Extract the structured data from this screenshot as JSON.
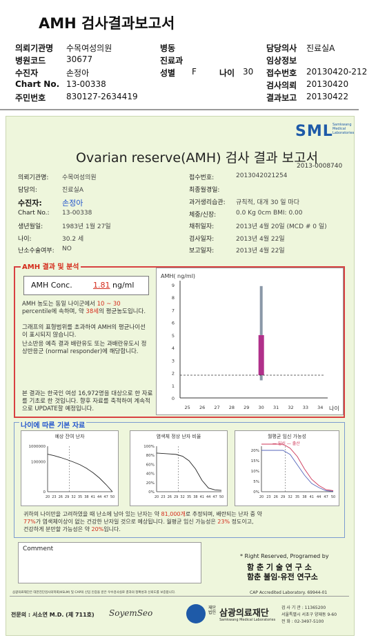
{
  "header": {
    "title": "AMH 검사결과보고서",
    "rows": [
      {
        "l1": "의뢰기관명",
        "v1": "수목여성의원",
        "l2": "병동",
        "v2": "",
        "l3": "담당의사",
        "v3": "진료실A"
      },
      {
        "l1": "병원코드",
        "v1": "30677",
        "l2": "진료과",
        "v2": "",
        "l3": "임상정보",
        "v3": ""
      },
      {
        "l1": "수진자",
        "v1": "손정아",
        "l2": "성별",
        "v2": "F",
        "l2b": "나이",
        "v2b": "30",
        "l3": "접수번호",
        "v3": "20130420-212"
      },
      {
        "l1": "Chart No.",
        "v1": "13-00338",
        "l2": "",
        "v2": "",
        "l3": "검사의뢰",
        "v3": "20130420"
      },
      {
        "l1": "주민번호",
        "v1": "830127-2634419",
        "l2": "",
        "v2": "",
        "l3": "결과보고",
        "v3": "20130422"
      }
    ]
  },
  "report": {
    "logo": "SML",
    "logo_sub": "Samkwang Medical Laboratories",
    "title": "Ovarian reserve(AMH) 검사 결과 보고서",
    "report_no": "2013-0008740",
    "left_fields": [
      {
        "label": "의뢰기관명:",
        "value": "수목여성의원"
      },
      {
        "label": "담당의:",
        "value": "진료실A"
      },
      {
        "label": "수진자:",
        "value": "손정아"
      },
      {
        "label": "Chart No.:",
        "value": "13-00338"
      },
      {
        "label": "생년월일:",
        "value": "1983년 1월 27일"
      },
      {
        "label": "나이:",
        "value": "30.2 세"
      },
      {
        "label": "난소수술여부:",
        "value": "NO"
      }
    ],
    "right_fields": [
      {
        "label": "접수번호:",
        "value": "2013042021254"
      },
      {
        "label": "최종월경일:",
        "value": ""
      },
      {
        "label": "과거생리습관:",
        "value": "규칙적,  대개   30 일 마다"
      },
      {
        "label": "체중/신장:",
        "value": "0.0 Kg      0cm    BMI:   0.00"
      },
      {
        "label": "채취일자:",
        "value": "2013년 4월 20일   (MCD # 0 일)"
      },
      {
        "label": "검사일자:",
        "value": "2013년 4월 22일"
      },
      {
        "label": "보고일자:",
        "value": "2013년 4월 22일"
      }
    ],
    "amh_section_title": "AMH 결과 및 분석",
    "amh_label": "AMH Conc.",
    "amh_value": "1.81",
    "amh_unit": "ng/ml",
    "para1a": "AMH 농도는 동일 나이군에서",
    "para1b": "10 ~ 30",
    "para1c": "percentile에 속하며, 약",
    "para1d": "38세",
    "para1e": "의 평균농도입니다.",
    "para2": "그래프의 표형범위를 초과하여 AMH의 평균나이선이 표시되지 않습니다.",
    "para3": "난소반응 예측 결과 배란유도 또는 과배란유도시 정상반응군 (normal responder)에 해당합니다.",
    "para4": "본 결과는 한국인 여성 16,972명을 대상으로 한 자료를 기초로 한 것입니다. 향후 자료를 축적하여 계속적으로 UPDATE할 예정입니다.",
    "age_section_title": "나이에 따른 기본 자료",
    "mini_titles": [
      "예상 잔여 난자",
      "염색체 정상 난자 비율",
      "월평균 임신 가능성"
    ],
    "mini_legend": "— 임신 — 출산",
    "bottom_text1a": "귀하의 나이만을 고려하였을 때 난소에 남아 있는 난자는 약",
    "bottom_text1b": "81,000개",
    "bottom_text1c": "로 추정되며, 배란되는 난자 중 약",
    "bottom_text2a": "77%",
    "bottom_text2b": "가 염색체이상이 없는 건강한 난자일 것으로 예상됩니다. 월평균 임신 가능성은",
    "bottom_text2c": "23%",
    "bottom_text2d": "정도이고,",
    "bottom_text3a": "건강하게 분만할 가능성은 약",
    "bottom_text3b": "20%",
    "bottom_text3c": "입니다.",
    "comment_label": "Comment",
    "rights": "* Right Reserved, Programed by",
    "lab1": "함 춘 기 술 연 구 소",
    "lab2": "함춘 불임·유전 연구소",
    "cap": "CAP Accredited Laboratory. 69944-01",
    "fine": "삼광의료재단은 대한진단검사의학회(KSLM) 및 CAP의 신임 인증을 받은 우수검사실로 결과의 정확성과 신뢰도를 보증합니다.",
    "specialist": "전문의 : 서소연 M.D. (제 711호)",
    "signature": "SoyemSeo",
    "foundation_small": "재단\n법인",
    "foundation": "삼광의료재단",
    "foundation_en": "Samkwang Medical Laboratories",
    "contact1": "검 사 기 관 : 11365200",
    "contact2": "서울특별시 서초구 양재동 9-60",
    "contact3": "전 화 : 02-3497-5100"
  },
  "chart_data": [
    {
      "type": "bar",
      "title": "",
      "ylabel": "AMH( ng/ml)",
      "xlabel": "나이",
      "x_ticks": [
        25,
        26,
        27,
        28,
        29,
        30,
        31,
        32,
        33,
        34
      ],
      "y_ticks": [
        0,
        1,
        2,
        3,
        4,
        5,
        6,
        7,
        8,
        9
      ],
      "ylim": [
        0,
        9
      ],
      "range_bar": {
        "x": 30,
        "low": 1.4,
        "high": 8.9,
        "upper_low": 5.0,
        "lower_high": 5.0
      },
      "patient_value": 1.81
    },
    {
      "type": "line",
      "title": "예상 잔여 난자",
      "x_ticks": [
        20,
        23,
        26,
        29,
        32,
        35,
        38,
        41,
        44,
        47,
        50
      ],
      "y_ticks": [
        "0",
        "100000",
        "1000000"
      ],
      "log_scale": true,
      "x": [
        20,
        23,
        26,
        29,
        32,
        35,
        38,
        41,
        44,
        47,
        50
      ],
      "y": [
        300000,
        240000,
        180000,
        130000,
        90000,
        60000,
        35000,
        18000,
        8000,
        3000,
        1000
      ],
      "marker_x": 30
    },
    {
      "type": "line",
      "title": "염색체 정상 난자 비율",
      "x_ticks": [
        20,
        23,
        26,
        29,
        32,
        35,
        38,
        41,
        44,
        47,
        50
      ],
      "y_ticks": [
        "0%",
        "20%",
        "40%",
        "60%",
        "80%",
        "100%"
      ],
      "x": [
        20,
        23,
        26,
        29,
        32,
        35,
        38,
        41,
        44,
        47,
        50
      ],
      "y": [
        85,
        84,
        83,
        82,
        78,
        68,
        50,
        25,
        8,
        4,
        3
      ],
      "marker_x": 30
    },
    {
      "type": "line",
      "title": "월평균 임신 가능성",
      "x_ticks": [
        20,
        23,
        26,
        29,
        32,
        35,
        38,
        41,
        44,
        47,
        50
      ],
      "y_ticks": [
        "0%",
        "5%",
        "10%",
        "15%",
        "20%"
      ],
      "series": [
        {
          "name": "임신",
          "x": [
            20,
            23,
            26,
            29,
            32,
            35,
            38,
            41,
            44,
            47,
            50
          ],
          "y": [
            23,
            23,
            23,
            23,
            21,
            17,
            11,
            6,
            3,
            1,
            0.5
          ]
        },
        {
          "name": "출산",
          "x": [
            20,
            23,
            26,
            29,
            32,
            35,
            38,
            41,
            44,
            47,
            50
          ],
          "y": [
            20,
            20,
            20,
            20,
            18,
            13,
            8,
            4,
            2,
            0.5,
            0.2
          ]
        }
      ],
      "marker_x": 30
    }
  ]
}
